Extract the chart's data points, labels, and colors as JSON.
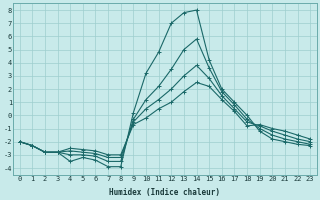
{
  "xlabel": "Humidex (Indice chaleur)",
  "background_color": "#c8eaea",
  "grid_color": "#9ecece",
  "line_color": "#1a6868",
  "xlim": [
    -0.5,
    23.5
  ],
  "ylim": [
    -4.5,
    8.5
  ],
  "xticks": [
    0,
    1,
    2,
    3,
    4,
    5,
    6,
    7,
    8,
    9,
    10,
    11,
    12,
    13,
    14,
    15,
    16,
    17,
    18,
    19,
    20,
    21,
    22,
    23
  ],
  "yticks": [
    -4,
    -3,
    -2,
    -1,
    0,
    1,
    2,
    3,
    4,
    5,
    6,
    7,
    8
  ],
  "x": [
    0,
    1,
    2,
    3,
    4,
    5,
    6,
    7,
    8,
    9,
    10,
    11,
    12,
    13,
    14,
    15,
    16,
    17,
    18,
    19,
    20,
    21,
    22,
    23
  ],
  "series": [
    [
      -2.0,
      -2.3,
      -2.8,
      -2.8,
      -3.5,
      -3.2,
      -3.4,
      -3.9,
      -3.9,
      0.2,
      3.2,
      4.8,
      7.0,
      7.8,
      8.0,
      4.2,
      2.0,
      1.0,
      0.0,
      -1.2,
      -1.8,
      -2.0,
      -2.2,
      -2.3
    ],
    [
      -2.0,
      -2.3,
      -2.8,
      -2.8,
      -3.0,
      -3.0,
      -3.1,
      -3.5,
      -3.5,
      -0.3,
      1.2,
      2.2,
      3.5,
      5.0,
      5.8,
      3.6,
      1.8,
      0.8,
      -0.3,
      -1.0,
      -1.5,
      -1.8,
      -2.0,
      -2.2
    ],
    [
      -2.0,
      -2.3,
      -2.8,
      -2.8,
      -2.7,
      -2.8,
      -2.9,
      -3.2,
      -3.2,
      -0.5,
      0.5,
      1.2,
      2.0,
      3.0,
      3.8,
      2.8,
      1.5,
      0.5,
      -0.5,
      -0.8,
      -1.2,
      -1.5,
      -1.8,
      -2.0
    ],
    [
      -2.0,
      -2.3,
      -2.8,
      -2.8,
      -2.5,
      -2.6,
      -2.7,
      -3.0,
      -3.0,
      -0.7,
      -0.2,
      0.5,
      1.0,
      1.8,
      2.5,
      2.2,
      1.2,
      0.3,
      -0.8,
      -0.7,
      -1.0,
      -1.2,
      -1.5,
      -1.8
    ]
  ]
}
